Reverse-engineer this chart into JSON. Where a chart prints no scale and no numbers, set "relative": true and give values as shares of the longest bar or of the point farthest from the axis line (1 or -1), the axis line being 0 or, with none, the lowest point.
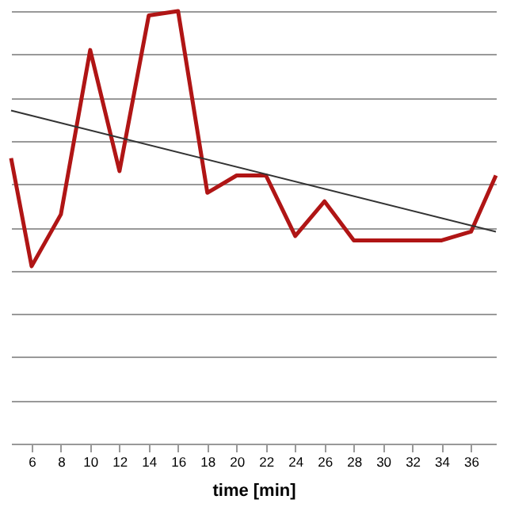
{
  "chart_data": {
    "type": "line",
    "relative": true,
    "xlabel": "time [min]",
    "xlim": [
      4.6,
      37.7
    ],
    "xticks": [
      6,
      8,
      10,
      12,
      14,
      16,
      18,
      20,
      22,
      24,
      26,
      28,
      30,
      32,
      34,
      36
    ],
    "grid": "y",
    "marker": "none",
    "series": [
      {
        "color": "#b01515",
        "x": [
          4.6,
          6,
          8,
          10,
          12,
          14,
          16,
          18,
          20,
          22,
          24,
          26,
          28,
          30,
          32,
          34,
          36,
          37.7
        ],
        "values": [
          0.66,
          0.41,
          0.53,
          0.91,
          0.63,
          0.99,
          1.0,
          0.58,
          0.62,
          0.62,
          0.48,
          0.56,
          0.47,
          0.47,
          0.47,
          0.47,
          0.49,
          0.62
        ]
      },
      {
        "type": "line",
        "color": "#333333",
        "x": [
          4.6,
          37.7
        ],
        "values": [
          0.77,
          0.49
        ]
      }
    ]
  }
}
